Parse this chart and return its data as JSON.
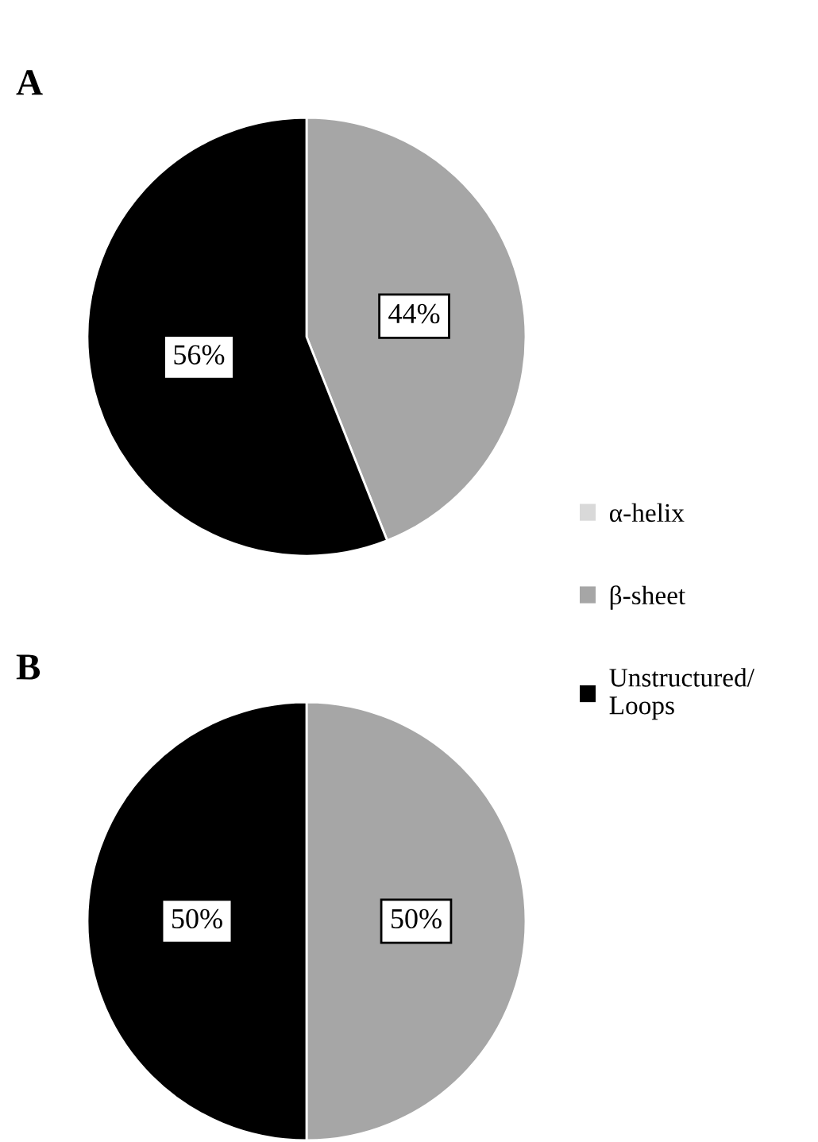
{
  "chart_data": [
    {
      "type": "pie",
      "title": "A",
      "categories": [
        "α-helix",
        "β-sheet",
        "Unstructured/\nLoops"
      ],
      "values": [
        0,
        44,
        56
      ],
      "colors": [
        "#d9d9d9",
        "#a6a6a6",
        "#000000"
      ],
      "value_labels": [
        null,
        "44%",
        "56%"
      ],
      "legend": "right"
    },
    {
      "type": "pie",
      "title": "B",
      "categories": [
        null,
        null,
        null
      ],
      "values": [
        0,
        50,
        50
      ],
      "colors": [
        "#d9d9d9",
        "#a6a6a6",
        "#000000"
      ],
      "value_labels": [
        null,
        "50%",
        "50%"
      ]
    }
  ]
}
